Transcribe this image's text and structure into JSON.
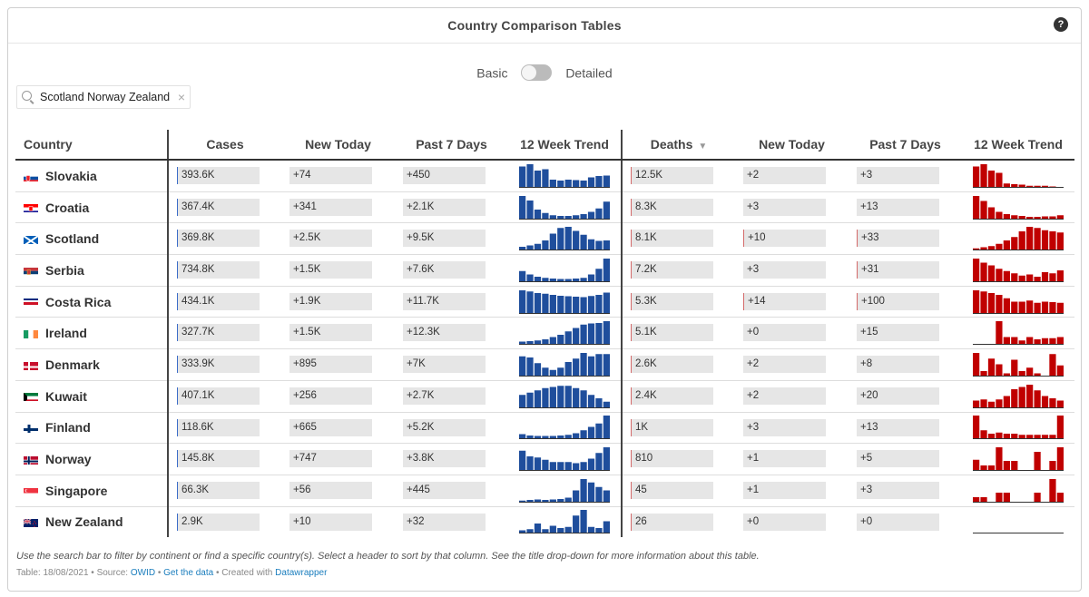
{
  "title": "Country Comparison Tables",
  "help_icon": "?",
  "toggle": {
    "left_label": "Basic",
    "right_label": "Detailed"
  },
  "search": {
    "value": "Scotland Norway Zealand",
    "icon": "search-icon",
    "clear": "×"
  },
  "columns": [
    "Country",
    "Cases",
    "New Today",
    "Past 7 Days",
    "12 Week Trend",
    "Deaths",
    "New Today",
    "Past 7 Days",
    "12 Week Trend"
  ],
  "sort_indicator": "▼",
  "colors": {
    "cases_trend": "#1f4e9c",
    "deaths_trend": "#c00000"
  },
  "rows": [
    {
      "country": "Slovakia",
      "flag": "slovakia",
      "cases": "393.6K",
      "cases_new": "+74",
      "cases_7d": "+450",
      "cases_trend": [
        0.9,
        1.0,
        0.72,
        0.78,
        0.32,
        0.28,
        0.32,
        0.3,
        0.28,
        0.42,
        0.48,
        0.5
      ],
      "deaths": "12.5K",
      "deaths_new": "+2",
      "deaths_7d": "+3",
      "deaths_trend": [
        0.9,
        1.0,
        0.72,
        0.62,
        0.15,
        0.12,
        0.1,
        0.05,
        0.05,
        0.05,
        0.02,
        0.0
      ]
    },
    {
      "country": "Croatia",
      "flag": "croatia",
      "cases": "367.4K",
      "cases_new": "+341",
      "cases_7d": "+2.1K",
      "cases_trend": [
        1.0,
        0.8,
        0.4,
        0.25,
        0.15,
        0.12,
        0.12,
        0.15,
        0.2,
        0.3,
        0.45,
        0.75
      ],
      "deaths": "8.3K",
      "deaths_new": "+3",
      "deaths_7d": "+13",
      "deaths_trend": [
        1.0,
        0.78,
        0.5,
        0.3,
        0.2,
        0.15,
        0.12,
        0.08,
        0.08,
        0.1,
        0.1,
        0.15
      ]
    },
    {
      "country": "Scotland",
      "flag": "scotland",
      "cases": "369.8K",
      "cases_new": "+2.5K",
      "cases_7d": "+9.5K",
      "cases_trend": [
        0.12,
        0.18,
        0.25,
        0.4,
        0.7,
        0.95,
        1.0,
        0.82,
        0.65,
        0.45,
        0.38,
        0.4
      ],
      "deaths": "8.1K",
      "deaths_new": "+10",
      "deaths_7d": "+33",
      "deaths_trend": [
        0.05,
        0.1,
        0.15,
        0.25,
        0.4,
        0.55,
        0.8,
        1.0,
        0.95,
        0.85,
        0.8,
        0.75
      ]
    },
    {
      "country": "Serbia",
      "flag": "serbia",
      "cases": "734.8K",
      "cases_new": "+1.5K",
      "cases_7d": "+7.6K",
      "cases_trend": [
        0.45,
        0.3,
        0.2,
        0.15,
        0.12,
        0.1,
        0.1,
        0.12,
        0.15,
        0.3,
        0.55,
        1.0
      ],
      "deaths": "7.2K",
      "deaths_new": "+3",
      "deaths_7d": "+31",
      "deaths_trend": [
        1.0,
        0.82,
        0.7,
        0.55,
        0.45,
        0.35,
        0.25,
        0.3,
        0.2,
        0.4,
        0.35,
        0.48
      ]
    },
    {
      "country": "Costa Rica",
      "flag": "costarica",
      "cases": "434.1K",
      "cases_new": "+1.9K",
      "cases_7d": "+11.7K",
      "cases_trend": [
        1.0,
        0.95,
        0.88,
        0.85,
        0.8,
        0.76,
        0.74,
        0.72,
        0.7,
        0.75,
        0.8,
        0.9
      ],
      "deaths": "5.3K",
      "deaths_new": "+14",
      "deaths_7d": "+100",
      "deaths_trend": [
        1.0,
        0.95,
        0.88,
        0.8,
        0.65,
        0.5,
        0.5,
        0.55,
        0.45,
        0.5,
        0.48,
        0.45
      ]
    },
    {
      "country": "Ireland",
      "flag": "ireland",
      "cases": "327.7K",
      "cases_new": "+1.5K",
      "cases_7d": "+12.3K",
      "cases_trend": [
        0.1,
        0.12,
        0.15,
        0.2,
        0.3,
        0.4,
        0.55,
        0.7,
        0.85,
        0.9,
        0.92,
        1.0
      ],
      "deaths": "5.1K",
      "deaths_new": "+0",
      "deaths_7d": "+15",
      "deaths_trend": [
        0.0,
        0.0,
        0.0,
        1.0,
        0.3,
        0.3,
        0.15,
        0.3,
        0.2,
        0.25,
        0.25,
        0.3
      ]
    },
    {
      "country": "Denmark",
      "flag": "denmark",
      "cases": "333.9K",
      "cases_new": "+895",
      "cases_7d": "+7K",
      "cases_trend": [
        0.85,
        0.8,
        0.55,
        0.35,
        0.25,
        0.35,
        0.6,
        0.75,
        1.0,
        0.85,
        0.95,
        0.95
      ],
      "deaths": "2.6K",
      "deaths_new": "+2",
      "deaths_7d": "+8",
      "deaths_trend": [
        1.0,
        0.2,
        0.75,
        0.5,
        0.1,
        0.7,
        0.2,
        0.35,
        0.1,
        0.0,
        0.95,
        0.45
      ]
    },
    {
      "country": "Kuwait",
      "flag": "kuwait",
      "cases": "407.1K",
      "cases_new": "+256",
      "cases_7d": "+2.7K",
      "cases_trend": [
        0.55,
        0.65,
        0.75,
        0.85,
        0.9,
        0.95,
        0.95,
        0.85,
        0.75,
        0.55,
        0.4,
        0.25
      ],
      "deaths": "2.4K",
      "deaths_new": "+2",
      "deaths_7d": "+20",
      "deaths_trend": [
        0.3,
        0.35,
        0.25,
        0.35,
        0.5,
        0.8,
        0.9,
        1.0,
        0.75,
        0.5,
        0.4,
        0.3
      ]
    },
    {
      "country": "Finland",
      "flag": "finland",
      "cases": "118.6K",
      "cases_new": "+665",
      "cases_7d": "+5.2K",
      "cases_trend": [
        0.18,
        0.12,
        0.1,
        0.1,
        0.1,
        0.12,
        0.15,
        0.22,
        0.35,
        0.5,
        0.65,
        1.0
      ],
      "deaths": "1K",
      "deaths_new": "+3",
      "deaths_7d": "+13",
      "deaths_trend": [
        1.0,
        0.35,
        0.2,
        0.25,
        0.2,
        0.2,
        0.15,
        0.15,
        0.15,
        0.15,
        0.15,
        1.0
      ]
    },
    {
      "country": "Norway",
      "flag": "norway",
      "cases": "145.8K",
      "cases_new": "+747",
      "cases_7d": "+3.8K",
      "cases_trend": [
        0.85,
        0.6,
        0.55,
        0.45,
        0.35,
        0.35,
        0.35,
        0.3,
        0.35,
        0.5,
        0.75,
        1.0
      ],
      "deaths": "810",
      "deaths_new": "+1",
      "deaths_7d": "+5",
      "deaths_trend": [
        0.45,
        0.2,
        0.2,
        1.0,
        0.4,
        0.4,
        0.0,
        0.0,
        0.8,
        0.0,
        0.4,
        1.0
      ]
    },
    {
      "country": "Singapore",
      "flag": "singapore",
      "cases": "66.3K",
      "cases_new": "+56",
      "cases_7d": "+445",
      "cases_trend": [
        0.05,
        0.08,
        0.1,
        0.08,
        0.1,
        0.12,
        0.18,
        0.5,
        1.0,
        0.85,
        0.65,
        0.5
      ],
      "deaths": "45",
      "deaths_new": "+1",
      "deaths_7d": "+3",
      "deaths_trend": [
        0.2,
        0.2,
        0.0,
        0.4,
        0.4,
        0.0,
        0.0,
        0.0,
        0.4,
        0.0,
        1.0,
        0.4
      ]
    },
    {
      "country": "New Zealand",
      "flag": "newzealand",
      "cases": "2.9K",
      "cases_new": "+10",
      "cases_7d": "+32",
      "cases_trend": [
        0.1,
        0.15,
        0.4,
        0.15,
        0.3,
        0.2,
        0.25,
        0.75,
        1.0,
        0.25,
        0.2,
        0.5
      ],
      "deaths": "26",
      "deaths_new": "+0",
      "deaths_7d": "+0",
      "deaths_trend": [
        0,
        0,
        0,
        0,
        0,
        0,
        0,
        0,
        0,
        0,
        0,
        0
      ]
    }
  ],
  "note": "Use the search bar to filter by continent or find a specific country(s). Select a header to sort by that column. See the title drop-down for more information about this table.",
  "footer": {
    "prefix": "Table: 18/08/2021 • Source:",
    "source_link": "OWID",
    "sep1": "•",
    "data_link": "Get the data",
    "sep2": "• Created with",
    "tool_link": "Datawrapper"
  }
}
